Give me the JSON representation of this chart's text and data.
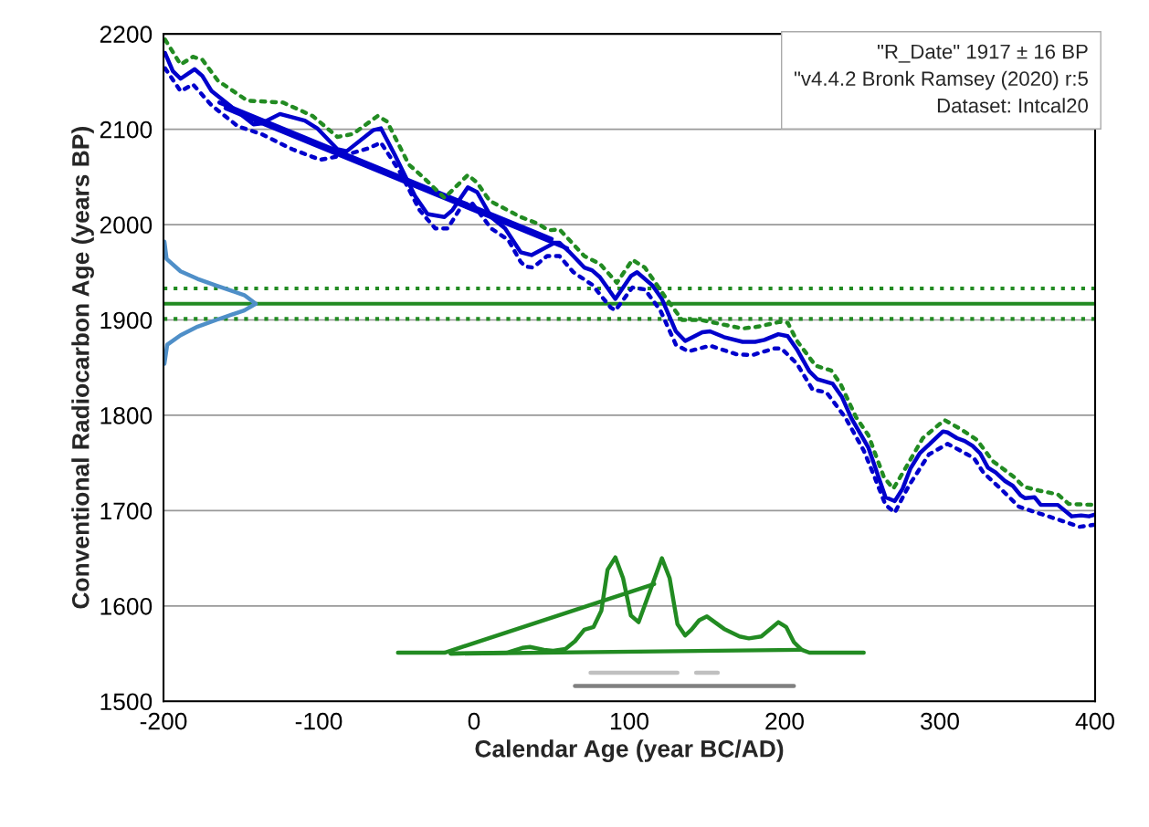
{
  "chart_data": {
    "type": "line",
    "xlabel": "Calendar Age (year BC/AD)",
    "ylabel": "Conventional Radiocarbon Age (years BP)",
    "xlim": [
      -200,
      400
    ],
    "xticks": [
      -200,
      -100,
      0,
      100,
      200,
      300,
      400
    ],
    "ylim": [
      1500,
      2200
    ],
    "yticks": [
      1500,
      1600,
      1700,
      1800,
      1900,
      2000,
      2100,
      2200
    ],
    "grid": "y",
    "legend": false,
    "marker": "none",
    "annotations": [
      "\"R_Date\" 1917 ± 16 BP",
      "\"v4.4.2 Bronk Ramsey (2020) r:5",
      "Dataset: Intcal20"
    ],
    "ref_lines": [
      {
        "axis": "y",
        "value": 1917,
        "label": null,
        "color": "#228b22",
        "line_style": "solid"
      },
      {
        "axis": "y",
        "value": 1933,
        "label": null,
        "color": "#228b22",
        "line_style": "dotted"
      },
      {
        "axis": "y",
        "value": 1901,
        "label": null,
        "color": "#228b22",
        "line_style": "dotted"
      }
    ],
    "series": [
      {
        "color": "#0000cc",
        "line_style": "solid",
        "x": [
          -199,
          -194,
          -189,
          -180,
          -175,
          -169,
          -142,
          -137,
          -125,
          -109,
          -101,
          -88,
          -82,
          -65,
          -60,
          -51,
          -38,
          -30,
          -19,
          -14,
          -4,
          2,
          11,
          20,
          30,
          37,
          52,
          55,
          61,
          71,
          76,
          81,
          91,
          101,
          105,
          115,
          121,
          130,
          136,
          147,
          152,
          161,
          173,
          181,
          187,
          196,
          202,
          208,
          216,
          221,
          231,
          237,
          243,
          254,
          265,
          271,
          276,
          281,
          287,
          302,
          305,
          311,
          316,
          321,
          326,
          331,
          336,
          342,
          347,
          352,
          355,
          361,
          365,
          376,
          385,
          391,
          396,
          400
        ],
        "values": [
          2180,
          2161,
          2153,
          2163,
          2156,
          2140,
          2105,
          2106,
          2116,
          2109,
          2101,
          2079,
          2077,
          2099,
          2101,
          2073,
          2030,
          2011,
          2008,
          2015,
          2039,
          2034,
          2008,
          1996,
          1971,
          1968,
          1981,
          1981,
          1972,
          1955,
          1952,
          1945,
          1922,
          1946,
          1950,
          1936,
          1922,
          1888,
          1878,
          1887,
          1888,
          1882,
          1877,
          1877,
          1879,
          1885,
          1883,
          1869,
          1846,
          1838,
          1833,
          1819,
          1797,
          1766,
          1714,
          1710,
          1723,
          1744,
          1760,
          1783,
          1782,
          1776,
          1773,
          1768,
          1760,
          1745,
          1740,
          1731,
          1726,
          1716,
          1713,
          1714,
          1706,
          1706,
          1694,
          1695,
          1694,
          1696
        ]
      },
      {
        "color": "#0000cc",
        "line_style": "solid",
        "x": [
          -164,
          50
        ],
        "values": [
          2128,
          1985
        ]
      },
      {
        "color": "#0000cc",
        "line_style": "solid",
        "x": [
          -160,
          60
        ],
        "values": [
          2122,
          1975
        ]
      },
      {
        "color": "#228b22",
        "line_style": "dotted",
        "x": [
          -199,
          -189,
          -181,
          -175,
          -165,
          -146,
          -123,
          -104,
          -88,
          -78,
          -62,
          -56,
          -42,
          -33,
          -19,
          -4,
          2,
          10,
          30,
          41,
          48,
          55,
          71,
          81,
          92,
          102,
          110,
          124,
          134,
          146,
          173,
          183,
          197,
          202,
          208,
          220,
          230,
          236,
          246,
          254,
          264,
          270,
          277,
          289,
          303,
          314,
          324,
          334,
          348,
          354,
          364,
          376,
          383,
          399
        ],
        "values": [
          2194,
          2168,
          2176,
          2173,
          2151,
          2130,
          2128,
          2114,
          2092,
          2095,
          2114,
          2108,
          2063,
          2050,
          2028,
          2052,
          2044,
          2025,
          2008,
          2001,
          1994,
          1995,
          1967,
          1959,
          1939,
          1963,
          1955,
          1922,
          1900,
          1900,
          1891,
          1893,
          1898,
          1897,
          1878,
          1852,
          1847,
          1833,
          1798,
          1779,
          1735,
          1723,
          1742,
          1776,
          1795,
          1785,
          1774,
          1752,
          1735,
          1725,
          1721,
          1717,
          1707,
          1706
        ]
      },
      {
        "color": "#0000cc",
        "line_style": "dotted",
        "x": [
          -199,
          -189,
          -181,
          -169,
          -152,
          -137,
          -117,
          -99,
          -83,
          -68,
          -60,
          -48,
          -35,
          -25,
          -17,
          -7,
          -1,
          11,
          22,
          30,
          33,
          38,
          47,
          55,
          64,
          76,
          88,
          91,
          102,
          110,
          120,
          130,
          138,
          152,
          169,
          179,
          193,
          198,
          208,
          218,
          227,
          239,
          251,
          258,
          265,
          271,
          280,
          293,
          305,
          312,
          322,
          328,
          341,
          351,
          368,
          381,
          390,
          399
        ],
        "values": [
          2164,
          2140,
          2147,
          2125,
          2103,
          2095,
          2079,
          2068,
          2073,
          2080,
          2086,
          2056,
          2015,
          1996,
          1996,
          2022,
          2022,
          1996,
          1984,
          1961,
          1956,
          1955,
          1967,
          1967,
          1950,
          1937,
          1913,
          1910,
          1934,
          1932,
          1910,
          1874,
          1867,
          1873,
          1864,
          1863,
          1870,
          1870,
          1854,
          1827,
          1824,
          1798,
          1763,
          1735,
          1706,
          1698,
          1726,
          1759,
          1770,
          1764,
          1755,
          1740,
          1720,
          1704,
          1695,
          1688,
          1683,
          1685
        ]
      },
      {
        "color": "#4f8fc8",
        "line_style": "solid",
        "x": [
          -199.4,
          -198,
          -189,
          -178,
          -166,
          -148,
          -140.6,
          -148,
          -166,
          -178,
          -189,
          -197.6,
          -199.4
        ],
        "values": [
          1982,
          1964,
          1951,
          1943,
          1936,
          1926,
          1917,
          1910,
          1900,
          1893,
          1884,
          1874,
          1854
        ]
      },
      {
        "color": "#228b22",
        "line_style": "solid",
        "x": [
          -15,
          21,
          31,
          36,
          45,
          51,
          59,
          65,
          71,
          77,
          82,
          86,
          91,
          96,
          101,
          106,
          121,
          126,
          131,
          136,
          140,
          145,
          150,
          161,
          171,
          177,
          185,
          196,
          201,
          206,
          211,
          216,
          251
        ],
        "values": [
          1550,
          1551,
          1556,
          1557,
          1554,
          1553,
          1555,
          1563,
          1575,
          1578,
          1595,
          1638,
          1651,
          1629,
          1590,
          1583,
          1650,
          1629,
          1581,
          1569,
          1575,
          1585,
          1589,
          1576,
          1568,
          1566,
          1568,
          1583,
          1578,
          1562,
          1554,
          1551,
          1551
        ]
      },
      {
        "color": "#228b22",
        "line_style": "solid",
        "x": [
          -49,
          -19,
          116
        ],
        "values": [
          1551,
          1551,
          1623
        ]
      },
      {
        "color": "#228b22",
        "line_style": "solid",
        "x": [
          -15,
          211
        ],
        "values": [
          1550,
          1554
        ]
      },
      {
        "color": "#c0c0c0",
        "line_style": "solid",
        "x": [
          75,
          131
        ],
        "values": [
          1530,
          1530
        ]
      },
      {
        "color": "#c0c0c0",
        "line_style": "solid",
        "x": [
          143,
          157
        ],
        "values": [
          1530,
          1530
        ]
      },
      {
        "color": "#808080",
        "line_style": "solid",
        "x": [
          65,
          206
        ],
        "values": [
          1516,
          1516
        ]
      }
    ]
  }
}
